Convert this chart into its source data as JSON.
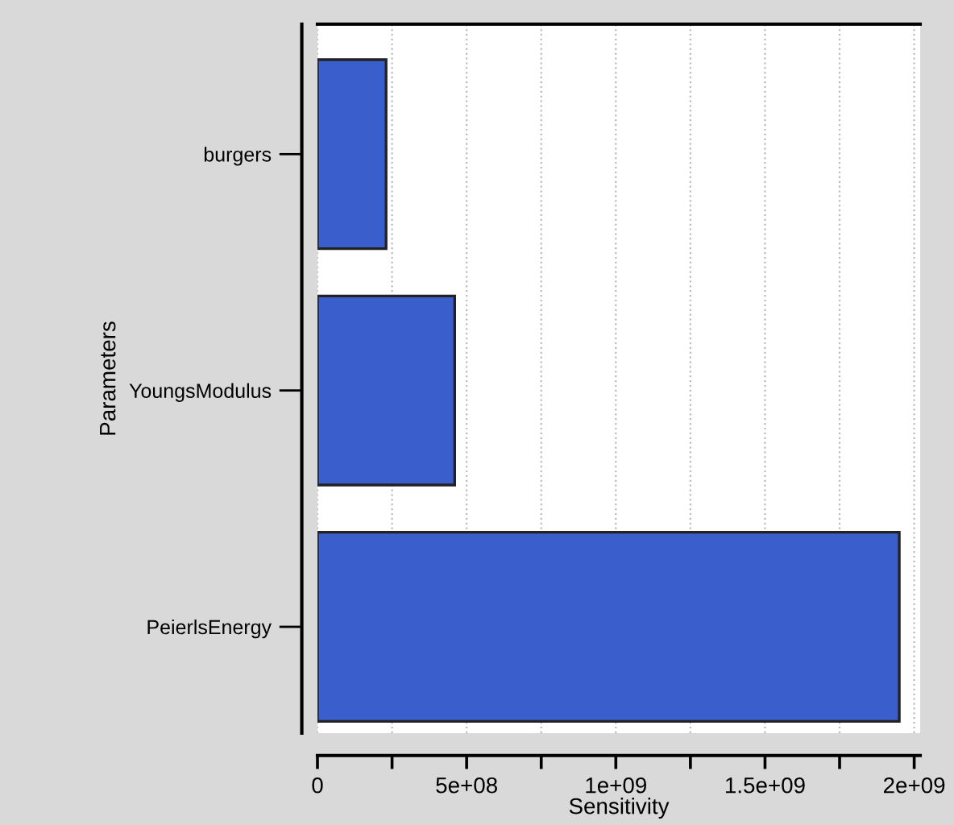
{
  "chart_data": {
    "type": "bar",
    "orientation": "horizontal",
    "xlabel": "Sensitivity",
    "ylabel": "Parameters",
    "categories": [
      "burgers",
      "YoungsModulus",
      "PeierlsEnergy"
    ],
    "values": [
      230000000.0,
      460000000.0,
      1950000000.0
    ],
    "color": "#3a5ecb",
    "xlim": [
      0,
      2020000000.0
    ],
    "xticks": [
      {
        "value": 0,
        "label": "0"
      },
      {
        "value": 250000000.0,
        "label": null
      },
      {
        "value": 500000000.0,
        "label": "5e+08"
      },
      {
        "value": 750000000.0,
        "label": null
      },
      {
        "value": 1000000000.0,
        "label": "1e+09"
      },
      {
        "value": 1250000000.0,
        "label": null
      },
      {
        "value": 1500000000.0,
        "label": "1.5e+09"
      },
      {
        "value": 1750000000.0,
        "label": null
      },
      {
        "value": 2000000000.0,
        "label": "2e+09"
      }
    ],
    "grid": "x"
  }
}
